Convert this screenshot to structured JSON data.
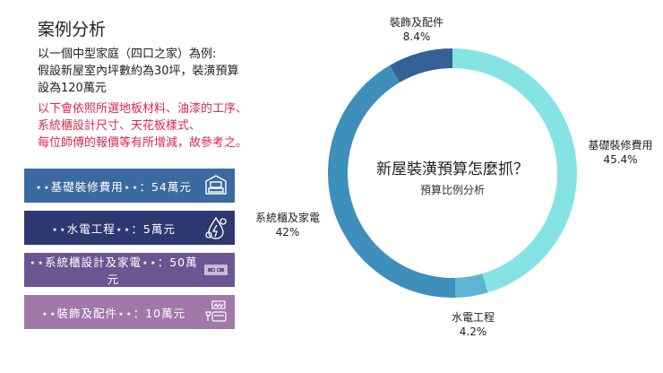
{
  "header": {
    "title": "案例分析",
    "description": [
      "以一個中型家庭（四口之家）為例:",
      "假設新屋室內坪數約為30坪，裝潢預算",
      "設為120萬元"
    ],
    "note": [
      "以下會依照所選地板材料、油漆的工序、",
      "系統櫃設計尺寸、天花板樣式、",
      "每位師傅的報價等有所增減，故參考之。"
    ],
    "note_color": "#d9284f"
  },
  "cards": [
    {
      "label": "⋆⋆基礎裝修費用⋆⋆：54萬元",
      "icon": "house-furniture-icon",
      "color": "#3b6aa1"
    },
    {
      "label": "⋆⋆水電工程⋆⋆：5萬元",
      "icon": "water-electricity-icon",
      "color": "#2e3870"
    },
    {
      "label": "⋆⋆系統櫃設計及家電⋆⋆：50萬元",
      "icon": "cabinet-icon",
      "color": "#6a5690"
    },
    {
      "label": "⋆⋆裝飾及配件⋆⋆：10萬元",
      "icon": "sofa-lamp-icon",
      "color": "#a079a9"
    }
  ],
  "chart_data": {
    "type": "pie",
    "variant": "donut",
    "title": "新屋裝潢預算怎麼抓？",
    "subtitle": "預算比例分析",
    "categories": [
      "基礎裝修費用",
      "水電工程",
      "系統櫃及家電",
      "裝飾及配件"
    ],
    "values": [
      45.4,
      4.2,
      42,
      8.4
    ],
    "value_labels": [
      "45.4%",
      "4.2%",
      "42%",
      "8.4%"
    ],
    "colors": [
      "#85e3e3",
      "#5bb5d3",
      "#3f8fbd",
      "#336196"
    ]
  }
}
